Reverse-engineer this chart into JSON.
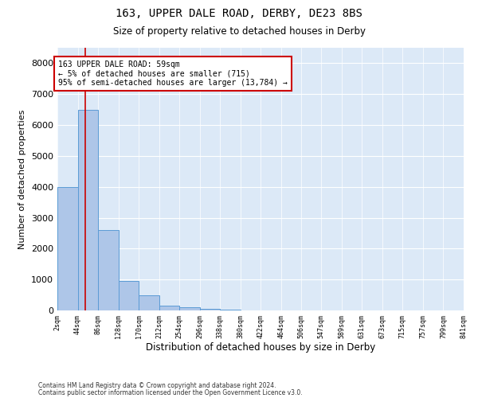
{
  "title1": "163, UPPER DALE ROAD, DERBY, DE23 8BS",
  "title2": "Size of property relative to detached houses in Derby",
  "xlabel": "Distribution of detached houses by size in Derby",
  "ylabel": "Number of detached properties",
  "footer1": "Contains HM Land Registry data © Crown copyright and database right 2024.",
  "footer2": "Contains public sector information licensed under the Open Government Licence v3.0.",
  "annotation_line1": "163 UPPER DALE ROAD: 59sqm",
  "annotation_line2": "← 5% of detached houses are smaller (715)",
  "annotation_line3": "95% of semi-detached houses are larger (13,784) →",
  "property_size_sqm": 59,
  "bar_edges": [
    2,
    44,
    86,
    128,
    170,
    212,
    254,
    296,
    338,
    380,
    422,
    464,
    506,
    547,
    589,
    631,
    673,
    715,
    757,
    799,
    841
  ],
  "bar_heights": [
    4000,
    6500,
    2600,
    950,
    500,
    150,
    100,
    50,
    20,
    5,
    2,
    1,
    0,
    0,
    0,
    0,
    0,
    0,
    0,
    0
  ],
  "bar_color": "#aec6e8",
  "bar_edge_color": "#5b9bd5",
  "line_color": "#cc0000",
  "annotation_box_color": "#cc0000",
  "background_color": "#dce9f7",
  "ylim": [
    0,
    8500
  ],
  "yticks": [
    0,
    1000,
    2000,
    3000,
    4000,
    5000,
    6000,
    7000,
    8000
  ],
  "tick_labels": [
    "2sqm",
    "44sqm",
    "86sqm",
    "128sqm",
    "170sqm",
    "212sqm",
    "254sqm",
    "296sqm",
    "338sqm",
    "380sqm",
    "422sqm",
    "464sqm",
    "506sqm",
    "547sqm",
    "589sqm",
    "631sqm",
    "673sqm",
    "715sqm",
    "757sqm",
    "799sqm",
    "841sqm"
  ]
}
